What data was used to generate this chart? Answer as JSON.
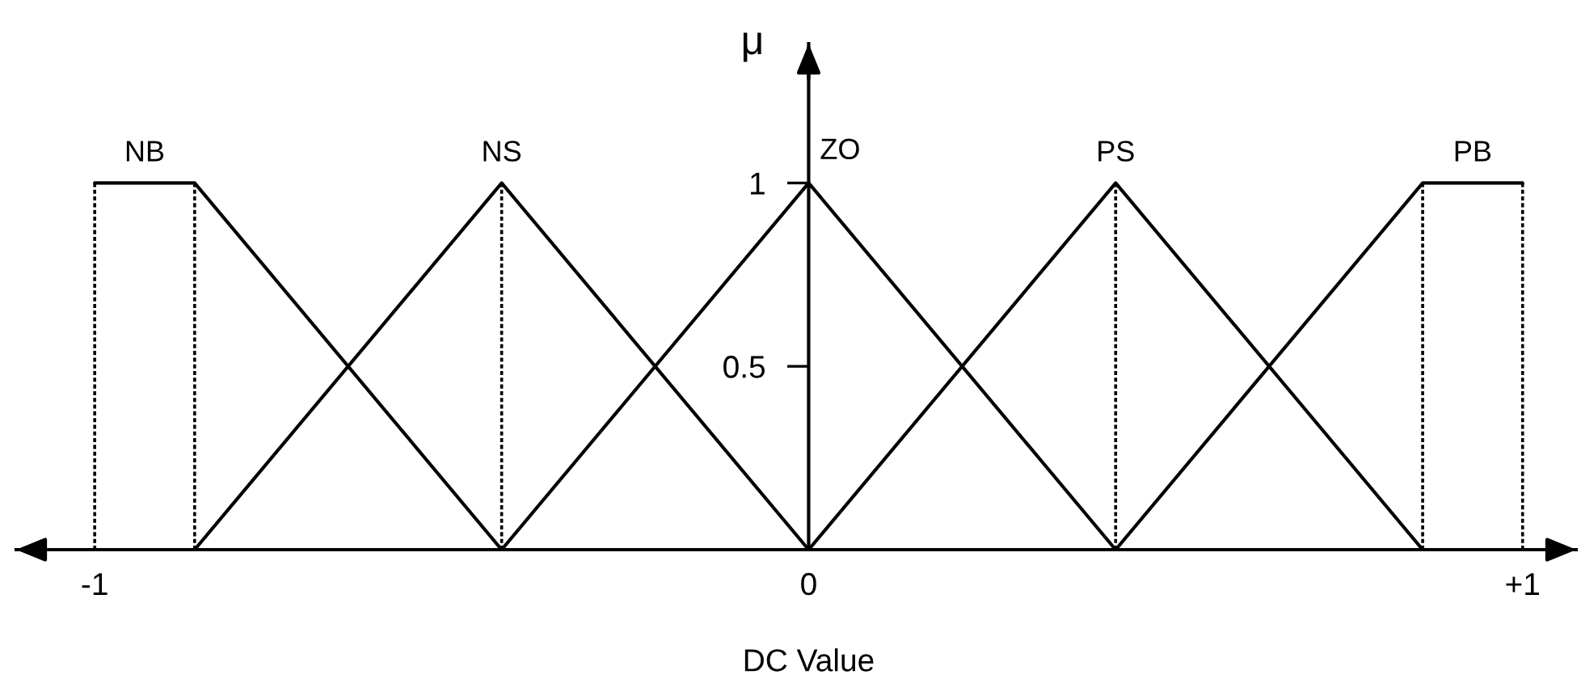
{
  "chart_data": {
    "type": "line",
    "xlabel": "DC Value",
    "ylabel": "μ",
    "xlim": [
      -1.11,
      1.075
    ],
    "ylim": [
      0,
      1.38
    ],
    "xticks": [
      -1,
      0,
      {
        "value": 1,
        "label": "+1"
      }
    ],
    "yticks": [
      0.5,
      1
    ],
    "line_style": "solid",
    "series": [
      {
        "name": "NB",
        "color": "#000000",
        "x": [
          -1,
          -0.86,
          -0.43
        ],
        "values": [
          1,
          1,
          0
        ]
      },
      {
        "name": "NS",
        "color": "#000000",
        "x": [
          -0.86,
          -0.43,
          0
        ],
        "values": [
          0,
          1,
          0
        ]
      },
      {
        "name": "ZO",
        "color": "#000000",
        "x": [
          -0.43,
          0,
          0.43
        ],
        "values": [
          0,
          1,
          0
        ]
      },
      {
        "name": "PS",
        "color": "#000000",
        "x": [
          0,
          0.43,
          0.86
        ],
        "values": [
          0,
          1,
          0
        ]
      },
      {
        "name": "PB",
        "color": "#000000",
        "x": [
          0.43,
          0.86,
          1
        ],
        "values": [
          0,
          1,
          1
        ]
      }
    ],
    "ref_lines": [
      {
        "axis": "x",
        "value": -1,
        "color": "#000000",
        "line_style": "dotted"
      },
      {
        "axis": "x",
        "value": -0.86,
        "color": "#000000",
        "line_style": "dotted"
      },
      {
        "axis": "x",
        "value": -0.43,
        "color": "#000000",
        "line_style": "dotted"
      },
      {
        "axis": "x",
        "value": 0.43,
        "color": "#000000",
        "line_style": "dotted"
      },
      {
        "axis": "x",
        "value": 0.86,
        "color": "#000000",
        "line_style": "dotted"
      },
      {
        "axis": "x",
        "value": 1,
        "color": "#000000",
        "line_style": "dotted"
      }
    ]
  }
}
